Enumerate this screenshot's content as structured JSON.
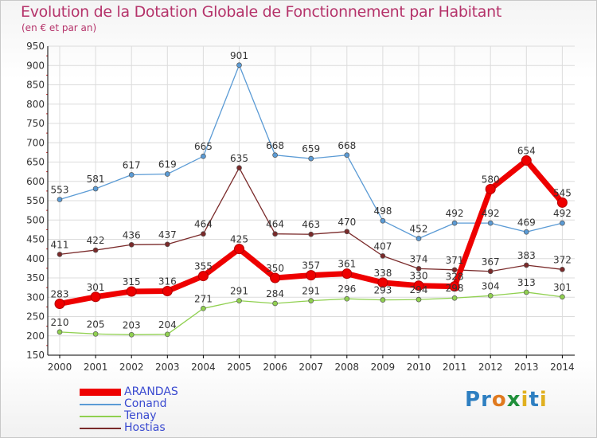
{
  "header": {
    "title": "Evolution de la Dotation Globale de Fonctionnement par Habitant",
    "subtitle": "(en € et par an)"
  },
  "logo": {
    "letters": [
      "P",
      "r",
      "o",
      "x",
      "i",
      "t",
      "i"
    ],
    "colors": [
      "#2e7fc1",
      "#2e7fc1",
      "#e07a1f",
      "#1f8f3a",
      "#e0b020",
      "#2e7fc1",
      "#e0b020"
    ]
  },
  "colors": {
    "grid": "#dcdcdc",
    "axis": "#000000",
    "tick_mark": "#cc3333",
    "label": "#333333"
  },
  "chart_data": {
    "type": "line",
    "title": "Evolution de la Dotation Globale de Fonctionnement par Habitant",
    "subtitle": "(en € et par an)",
    "xlabel": "",
    "ylabel": "",
    "ylim": [
      150,
      950
    ],
    "y_ticks": [
      150,
      200,
      250,
      300,
      350,
      400,
      450,
      500,
      550,
      600,
      650,
      700,
      750,
      800,
      850,
      900,
      950
    ],
    "x": [
      "2000",
      "2001",
      "2002",
      "2003",
      "2004",
      "2005",
      "2006",
      "2007",
      "2008",
      "2009",
      "2010",
      "2011",
      "2012",
      "2013",
      "2014"
    ],
    "grid": true,
    "legend_position": "bottom-left",
    "series": [
      {
        "name": "ARANDAS",
        "color": "#ee0000",
        "values": [
          283,
          301,
          315,
          316,
          355,
          425,
          350,
          357,
          361,
          338,
          330,
          328,
          580,
          654,
          545
        ],
        "labels": [
          "283",
          "301",
          "315",
          "316",
          "355",
          "425",
          "350",
          "357",
          "361",
          "338",
          "330",
          "328",
          "580",
          "654",
          "545"
        ]
      },
      {
        "name": "Conand",
        "color": "#5b9bd5",
        "values": [
          553,
          581,
          617,
          619,
          665,
          901,
          668,
          659,
          668,
          498,
          452,
          492,
          492,
          469,
          492
        ],
        "labels": [
          "553",
          "581",
          "617",
          "619",
          "665",
          "901",
          "668",
          "659",
          "668",
          "498",
          "452",
          "492",
          "492",
          "469",
          "492"
        ]
      },
      {
        "name": "Tenay",
        "color": "#90d050",
        "values": [
          210,
          205,
          203,
          204,
          271,
          291,
          284,
          291,
          296,
          293,
          294,
          298,
          304,
          313,
          301
        ],
        "labels": [
          "210",
          "205",
          "203",
          "204",
          "271",
          "291",
          "284",
          "291",
          "296",
          "293",
          "294",
          "298",
          "304",
          "313",
          "301"
        ]
      },
      {
        "name": "Hostias",
        "color": "#7a2a2a",
        "values": [
          411,
          422,
          436,
          437,
          464,
          635,
          464,
          463,
          470,
          407,
          374,
          371,
          367,
          383,
          372
        ],
        "labels": [
          "411",
          "422",
          "436",
          "437",
          "464",
          "635",
          "464",
          "463",
          "470",
          "407",
          "374",
          "371",
          "367",
          "383",
          "372"
        ]
      }
    ]
  },
  "legend": {
    "items": [
      "ARANDAS",
      "Conand",
      "Tenay",
      "Hostias"
    ]
  }
}
